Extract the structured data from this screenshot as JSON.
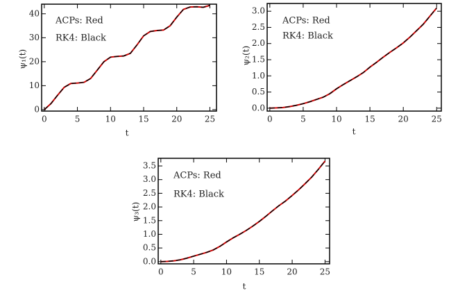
{
  "chart_data": [
    {
      "type": "line",
      "xlabel": "t",
      "ylabel": "ψ₁(t)",
      "annotations": [
        "ACPs:  Red",
        "RK4:  Black"
      ],
      "x": [
        0,
        1,
        2,
        3,
        4,
        5,
        6,
        7,
        8,
        9,
        10,
        11,
        12,
        13,
        14,
        15,
        16,
        17,
        18,
        19,
        20,
        21,
        22,
        23,
        24,
        25
      ],
      "series": [
        {
          "color": "#cc0000",
          "values": [
            0,
            2.5,
            6,
            9.3,
            10.9,
            11.1,
            11.4,
            13,
            16.5,
            20,
            21.9,
            22.2,
            22.4,
            23.5,
            27,
            30.8,
            32.6,
            33,
            33.2,
            35,
            38.6,
            41.8,
            42.8,
            42.9,
            42.7,
            43.5
          ]
        },
        {
          "color": "#000000",
          "dashed": true,
          "values": [
            0,
            2.5,
            6,
            9.3,
            10.9,
            11.1,
            11.4,
            13,
            16.5,
            20,
            21.9,
            22.2,
            22.4,
            23.5,
            27,
            30.8,
            32.6,
            33,
            33.2,
            35,
            38.6,
            41.8,
            42.8,
            42.9,
            42.7,
            43.5
          ]
        }
      ],
      "xlim": [
        -0.4,
        26
      ],
      "ylim": [
        -0.6,
        44
      ],
      "xticks": [
        0,
        5,
        10,
        15,
        20,
        25
      ],
      "yticks": [
        0,
        10,
        20,
        30,
        40
      ]
    },
    {
      "type": "line",
      "xlabel": "t",
      "ylabel": "ψ₂(t)",
      "annotations": [
        "ACPs:  Red",
        "RK4:  Black"
      ],
      "x": [
        0,
        1,
        2,
        3,
        4,
        5,
        6,
        7,
        8,
        9,
        10,
        11,
        12,
        13,
        14,
        15,
        16,
        17,
        18,
        19,
        20,
        21,
        22,
        23,
        24,
        25
      ],
      "series": [
        {
          "color": "#cc0000",
          "values": [
            0,
            0.01,
            0.02,
            0.05,
            0.09,
            0.14,
            0.2,
            0.27,
            0.34,
            0.45,
            0.6,
            0.73,
            0.85,
            0.97,
            1.1,
            1.27,
            1.42,
            1.58,
            1.73,
            1.87,
            2.02,
            2.2,
            2.4,
            2.6,
            2.85,
            3.1
          ]
        },
        {
          "color": "#000000",
          "dashed": true,
          "values": [
            0,
            0.01,
            0.02,
            0.05,
            0.09,
            0.14,
            0.2,
            0.27,
            0.34,
            0.45,
            0.6,
            0.73,
            0.85,
            0.97,
            1.1,
            1.27,
            1.42,
            1.58,
            1.73,
            1.87,
            2.02,
            2.2,
            2.4,
            2.6,
            2.85,
            3.1
          ]
        }
      ],
      "xlim": [
        -0.4,
        25.7
      ],
      "ylim": [
        -0.09,
        3.24
      ],
      "xticks": [
        0,
        5,
        10,
        15,
        20,
        25
      ],
      "yticks": [
        {
          "value": 0,
          "label": "0.0"
        },
        0.5,
        {
          "value": 1,
          "label": "1.0"
        },
        1.5,
        {
          "value": 2,
          "label": "2.0"
        },
        2.5,
        {
          "value": 3,
          "label": "3.0"
        }
      ]
    },
    {
      "type": "line",
      "xlabel": "t",
      "ylabel": "ψ₃(t)",
      "annotations": [
        "ACPs:  Red",
        "RK4:  Black"
      ],
      "x": [
        0,
        1,
        2,
        3,
        4,
        5,
        6,
        7,
        8,
        9,
        10,
        11,
        12,
        13,
        14,
        15,
        16,
        17,
        18,
        19,
        20,
        21,
        22,
        23,
        24,
        25
      ],
      "series": [
        {
          "color": "#cc0000",
          "values": [
            0,
            0.01,
            0.03,
            0.07,
            0.13,
            0.2,
            0.27,
            0.34,
            0.43,
            0.56,
            0.72,
            0.87,
            1.0,
            1.14,
            1.3,
            1.47,
            1.66,
            1.86,
            2.05,
            2.22,
            2.42,
            2.63,
            2.86,
            3.1,
            3.38,
            3.68
          ]
        },
        {
          "color": "#000000",
          "dashed": true,
          "values": [
            0,
            0.01,
            0.03,
            0.07,
            0.13,
            0.2,
            0.27,
            0.34,
            0.43,
            0.56,
            0.72,
            0.87,
            1.0,
            1.14,
            1.3,
            1.47,
            1.66,
            1.86,
            2.05,
            2.22,
            2.42,
            2.63,
            2.86,
            3.1,
            3.38,
            3.68
          ]
        }
      ],
      "xlim": [
        -0.4,
        25.7
      ],
      "ylim": [
        -0.08,
        3.78
      ],
      "xticks": [
        0,
        5,
        10,
        15,
        20,
        25
      ],
      "yticks": [
        {
          "value": 0,
          "label": "0.0"
        },
        0.5,
        {
          "value": 1,
          "label": "1.0"
        },
        1.5,
        {
          "value": 2,
          "label": "2.0"
        },
        2.5,
        {
          "value": 3,
          "label": "3.0"
        },
        3.5
      ]
    }
  ]
}
